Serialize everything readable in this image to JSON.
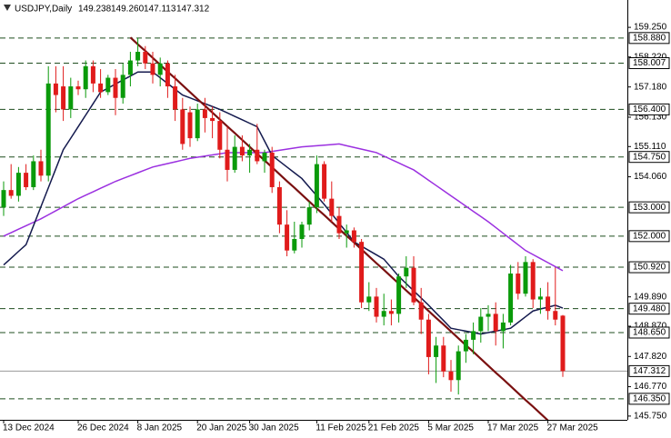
{
  "chart_data": {
    "type": "candlestick",
    "title": "USDJPY,Daily",
    "header_values": [
      "149.238",
      "149.260",
      "147.113",
      "147.312"
    ],
    "categories": [
      "13 Dec 2024",
      null,
      null,
      null,
      null,
      null,
      null,
      null,
      null,
      null,
      "26 Dec 2024",
      null,
      null,
      null,
      null,
      null,
      null,
      null,
      "8 Jan 2025",
      null,
      null,
      null,
      null,
      null,
      null,
      null,
      "20 Jan 2025",
      null,
      null,
      null,
      null,
      null,
      null,
      "30 Jan 2025",
      null,
      null,
      null,
      null,
      null,
      null,
      null,
      null,
      "11 Feb 2025",
      null,
      null,
      null,
      null,
      null,
      null,
      "21 Feb 2025",
      null,
      null,
      null,
      null,
      null,
      null,
      null,
      "5 Mar 2025",
      null,
      null,
      null,
      null,
      null,
      null,
      null,
      "17 Mar 2025",
      null,
      null,
      null,
      null,
      null,
      null,
      null,
      "27 Mar 2025",
      null,
      null
    ],
    "ohlc": {
      "up_color": "#0a9a0a",
      "down_color": "#e01b1b",
      "open": [
        153.0,
        153.6,
        153.4,
        154.2,
        153.7,
        154.6,
        154.1,
        157.3,
        157.2,
        156.4,
        157.2,
        157.1,
        157.9,
        157.3,
        157.0,
        157.5,
        156.8,
        157.6,
        158.1,
        158.4,
        158.0,
        157.6,
        158.0,
        157.2,
        156.4,
        156.3,
        155.4,
        156.4,
        156.1,
        156.0,
        155.0,
        154.3,
        155.1,
        154.8,
        155.0,
        154.6,
        154.9,
        153.7,
        152.4,
        151.5,
        151.9,
        152.4,
        153.0,
        154.5,
        153.3,
        152.7,
        152.1,
        152.2,
        151.8,
        149.7,
        149.9,
        149.2,
        149.4,
        149.3,
        150.6,
        150.9,
        149.7,
        149.1,
        147.8,
        148.2,
        147.3,
        147.0,
        148.0,
        148.4,
        148.7,
        149.2,
        149.3,
        148.7,
        149.0,
        150.7,
        150.0,
        151.1,
        149.8,
        149.9,
        149.4,
        149.238
      ],
      "high": [
        153.9,
        154.5,
        154.4,
        154.5,
        154.8,
        155.0,
        157.9,
        157.9,
        157.9,
        157.5,
        157.4,
        158.1,
        158.1,
        157.8,
        157.6,
        157.8,
        158.0,
        158.4,
        158.88,
        158.6,
        158.4,
        158.2,
        158.1,
        157.6,
        156.8,
        156.5,
        156.6,
        156.8,
        156.5,
        156.3,
        155.8,
        155.5,
        155.5,
        155.2,
        155.9,
        155.0,
        155.1,
        153.9,
        152.9,
        152.5,
        152.5,
        153.2,
        154.8,
        154.6,
        153.9,
        153.0,
        152.4,
        152.3,
        151.9,
        150.4,
        150.2,
        150.0,
        149.8,
        150.7,
        151.3,
        151.3,
        150.2,
        149.3,
        148.5,
        148.5,
        147.7,
        148.2,
        148.6,
        149.0,
        149.5,
        149.6,
        149.7,
        149.3,
        151.0,
        151.1,
        151.3,
        151.2,
        150.2,
        150.4,
        150.9,
        149.26
      ],
      "low": [
        152.7,
        153.3,
        153.2,
        153.6,
        153.6,
        153.9,
        153.9,
        156.3,
        156.0,
        156.1,
        156.9,
        156.8,
        157.0,
        156.8,
        156.9,
        156.2,
        156.6,
        157.2,
        157.9,
        157.8,
        157.3,
        157.2,
        156.8,
        156.0,
        155.0,
        155.1,
        155.3,
        155.6,
        155.4,
        154.7,
        153.9,
        154.2,
        154.6,
        154.2,
        154.5,
        154.2,
        153.5,
        152.1,
        151.3,
        151.4,
        151.6,
        152.2,
        152.8,
        153.2,
        152.5,
        151.9,
        151.6,
        151.6,
        149.5,
        149.4,
        149.0,
        148.9,
        148.9,
        149.0,
        150.2,
        149.6,
        148.6,
        147.2,
        146.9,
        147.1,
        146.6,
        146.5,
        147.6,
        147.9,
        148.3,
        148.7,
        148.2,
        148.1,
        148.9,
        149.8,
        149.9,
        149.5,
        149.3,
        149.1,
        148.9,
        147.113
      ],
      "close": [
        153.6,
        153.4,
        154.2,
        153.7,
        154.6,
        154.1,
        157.3,
        156.9,
        156.4,
        157.2,
        157.1,
        157.9,
        157.3,
        157.0,
        157.5,
        156.8,
        157.6,
        158.1,
        158.4,
        158.0,
        157.6,
        158.0,
        157.2,
        156.4,
        155.2,
        155.4,
        156.4,
        156.1,
        156.0,
        155.0,
        154.3,
        155.1,
        154.8,
        155.0,
        154.6,
        154.9,
        153.7,
        152.4,
        151.5,
        151.9,
        152.4,
        153.0,
        154.5,
        153.3,
        152.7,
        152.1,
        152.2,
        151.8,
        149.7,
        149.9,
        149.2,
        149.4,
        149.3,
        150.6,
        150.9,
        149.7,
        149.1,
        147.8,
        148.2,
        147.3,
        147.0,
        148.0,
        148.4,
        148.7,
        149.2,
        149.3,
        148.7,
        149.0,
        150.7,
        150.0,
        151.1,
        149.8,
        149.9,
        149.4,
        149.1,
        147.312
      ]
    },
    "lines": [
      {
        "color": "#9b30e0",
        "width": 1.5,
        "values": [
          152.0,
          152.12,
          152.24,
          152.36,
          152.48,
          152.6,
          152.74,
          152.88,
          153.02,
          153.16,
          153.3,
          153.42,
          153.54,
          153.66,
          153.78,
          153.9,
          154.0,
          154.1,
          154.2,
          154.3,
          154.4,
          154.46,
          154.52,
          154.58,
          154.64,
          154.7,
          154.74,
          154.78,
          154.82,
          154.86,
          154.9,
          154.9,
          154.9,
          154.9,
          154.9,
          154.9,
          154.94,
          154.98,
          155.02,
          155.06,
          155.1,
          155.12,
          155.14,
          155.16,
          155.18,
          155.2,
          155.14,
          155.08,
          155.02,
          154.96,
          154.9,
          154.78,
          154.66,
          154.54,
          154.42,
          154.3,
          154.12,
          153.94,
          153.76,
          153.58,
          153.4,
          153.22,
          153.04,
          152.86,
          152.68,
          152.5,
          152.3,
          152.1,
          151.9,
          151.7,
          151.5,
          151.36,
          151.22,
          151.08,
          150.94,
          150.8
        ]
      },
      {
        "color": "#141a4e",
        "width": 1.5,
        "values": [
          151.0,
          151.23,
          151.47,
          151.7,
          152.36,
          153.02,
          153.68,
          154.34,
          155.0,
          155.4,
          155.8,
          156.2,
          156.6,
          157.0,
          157.14,
          157.28,
          157.42,
          157.56,
          157.7,
          157.7,
          157.7,
          157.5,
          157.3,
          157.1,
          156.9,
          156.8,
          156.7,
          156.6,
          156.5,
          156.4,
          156.28,
          156.16,
          156.04,
          155.92,
          155.8,
          155.3,
          154.8,
          154.6,
          154.4,
          154.2,
          154.0,
          153.7,
          153.4,
          153.1,
          152.78,
          152.45,
          152.13,
          151.8,
          151.65,
          151.5,
          151.35,
          151.2,
          150.9,
          150.6,
          150.35,
          150.1,
          149.85,
          149.6,
          149.33,
          149.07,
          148.8,
          148.75,
          148.7,
          148.65,
          148.6,
          148.65,
          148.7,
          148.75,
          148.8,
          149.0,
          149.2,
          149.4,
          149.47,
          149.53,
          149.6,
          149.5
        ]
      },
      {
        "color": "#7a1010",
        "width": 2.2,
        "values": [
          null,
          null,
          null,
          null,
          null,
          null,
          null,
          null,
          null,
          null,
          null,
          null,
          null,
          null,
          null,
          null,
          null,
          158.9,
          158.66,
          158.43,
          158.19,
          157.95,
          157.71,
          157.48,
          157.24,
          157.0,
          156.76,
          156.53,
          156.29,
          156.05,
          155.81,
          155.58,
          155.34,
          155.1,
          154.86,
          154.63,
          154.39,
          154.15,
          153.91,
          153.68,
          153.44,
          153.2,
          152.96,
          152.73,
          152.49,
          152.25,
          152.01,
          151.78,
          151.54,
          151.3,
          151.06,
          150.83,
          150.59,
          150.35,
          150.11,
          149.88,
          149.64,
          149.4,
          149.16,
          148.93,
          148.69,
          148.45,
          148.21,
          147.98,
          147.74,
          147.5,
          147.26,
          147.03,
          146.79,
          146.55,
          146.31,
          146.08,
          145.84,
          145.6,
          null,
          null
        ]
      }
    ],
    "levels_color": "#1f4d1f",
    "levels": [
      {
        "value": 158.88,
        "label": "158.880"
      },
      {
        "value": 158.007,
        "label": "158.007"
      },
      {
        "value": 156.4,
        "label": "156.400"
      },
      {
        "value": 154.75,
        "label": "154.750"
      },
      {
        "value": 153.0,
        "label": "153.000"
      },
      {
        "value": 152.0,
        "label": "152.000"
      },
      {
        "value": 150.92,
        "label": "150.920"
      },
      {
        "value": 149.48,
        "label": "149.480"
      },
      {
        "value": 148.65,
        "label": "148.650"
      },
      {
        "value": 146.35,
        "label": "146.350"
      }
    ],
    "price_line": {
      "value": 147.312,
      "label": "147.312",
      "color": "#9a9a9a"
    },
    "ylim": [
      145.62,
      160.2
    ],
    "yticks": [
      {
        "value": 159.25,
        "label": "159.250"
      },
      {
        "value": 158.22,
        "label": "158.220"
      },
      {
        "value": 157.18,
        "label": "157.180"
      },
      {
        "value": 156.13,
        "label": "156.130"
      },
      {
        "value": 155.11,
        "label": "155.110"
      },
      {
        "value": 154.06,
        "label": "154.060"
      },
      {
        "value": 149.89,
        "label": "149.890"
      },
      {
        "value": 148.87,
        "label": "148.870"
      },
      {
        "value": 147.82,
        "label": "147.820"
      },
      {
        "value": 146.77,
        "label": "146.770"
      },
      {
        "value": 145.75,
        "label": "145.750"
      }
    ]
  }
}
